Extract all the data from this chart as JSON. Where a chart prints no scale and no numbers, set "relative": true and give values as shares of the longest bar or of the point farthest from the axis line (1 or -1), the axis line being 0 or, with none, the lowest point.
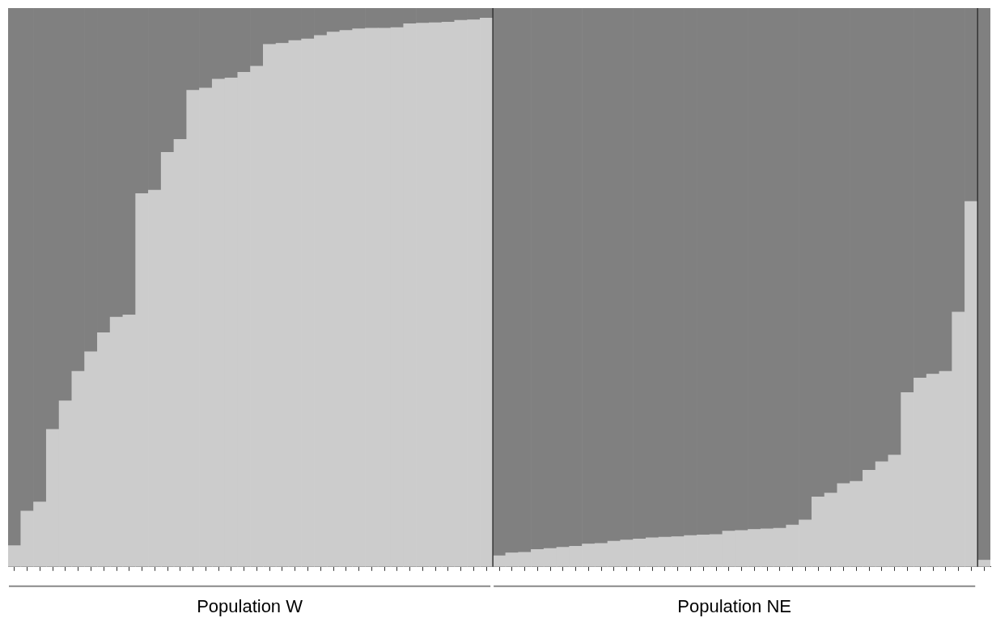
{
  "chart_data": {
    "type": "bar",
    "stacked": true,
    "relative": true,
    "categories": [
      null,
      null,
      null,
      null,
      null,
      null,
      null,
      null,
      null,
      null,
      null,
      null,
      null,
      null,
      null,
      null,
      null,
      null,
      null,
      null,
      null,
      null,
      null,
      null,
      null,
      null,
      null,
      null,
      null,
      null,
      null,
      null,
      null,
      null,
      null,
      null,
      null,
      null,
      null,
      null,
      null,
      null,
      null,
      null,
      null,
      null,
      null,
      null,
      null,
      null,
      null,
      null,
      null,
      null,
      null,
      null,
      null,
      null,
      null,
      null,
      null,
      null,
      null,
      null,
      null,
      null,
      null,
      null,
      null,
      null,
      null,
      null,
      null,
      null,
      null,
      null,
      null
    ],
    "series": [
      {
        "color": "#cccccc",
        "values": [
          0.038,
          0.1,
          0.116,
          0.246,
          0.297,
          0.35,
          0.385,
          0.419,
          0.447,
          0.451,
          0.668,
          0.674,
          0.742,
          0.765,
          0.853,
          0.857,
          0.873,
          0.875,
          0.885,
          0.896,
          0.935,
          0.937,
          0.942,
          0.945,
          0.951,
          0.957,
          0.96,
          0.963,
          0.964,
          0.964,
          0.965,
          0.972,
          0.973,
          0.974,
          0.975,
          0.978,
          0.979,
          0.982,
          0.02,
          0.025,
          0.026,
          0.031,
          0.033,
          0.035,
          0.037,
          0.041,
          0.042,
          0.046,
          0.048,
          0.05,
          0.052,
          0.053,
          0.054,
          0.056,
          0.057,
          0.058,
          0.064,
          0.065,
          0.067,
          0.068,
          0.069,
          0.075,
          0.084,
          0.125,
          0.132,
          0.149,
          0.153,
          0.173,
          0.188,
          0.2,
          0.312,
          0.338,
          0.345,
          0.35,
          0.456,
          0.654,
          0.012
        ]
      },
      {
        "color": "#808080",
        "values": [
          0.962,
          0.9,
          0.884,
          0.754,
          0.703,
          0.65,
          0.615,
          0.581,
          0.553,
          0.549,
          0.332,
          0.326,
          0.258,
          0.235,
          0.147,
          0.143,
          0.127,
          0.125,
          0.115,
          0.104,
          0.065,
          0.063,
          0.058,
          0.055,
          0.049,
          0.043,
          0.04,
          0.037,
          0.036,
          0.036,
          0.035,
          0.028,
          0.027,
          0.026,
          0.025,
          0.022,
          0.021,
          0.018,
          0.98,
          0.975,
          0.974,
          0.969,
          0.967,
          0.965,
          0.963,
          0.959,
          0.958,
          0.954,
          0.952,
          0.95,
          0.948,
          0.947,
          0.946,
          0.944,
          0.943,
          0.942,
          0.936,
          0.935,
          0.933,
          0.932,
          0.931,
          0.925,
          0.916,
          0.875,
          0.868,
          0.851,
          0.847,
          0.827,
          0.812,
          0.8,
          0.688,
          0.662,
          0.655,
          0.65,
          0.544,
          0.346,
          0.988
        ]
      }
    ],
    "annotations": [
      "Population W",
      "Population NE"
    ]
  }
}
